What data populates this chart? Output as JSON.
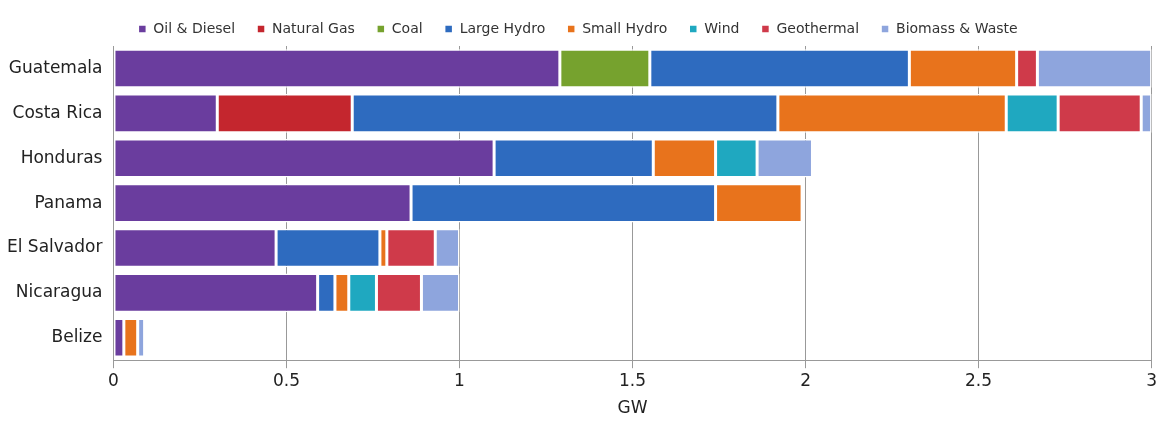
{
  "chart_data": {
    "type": "bar",
    "orientation": "horizontal",
    "stacked": true,
    "xlabel": "GW",
    "categories": [
      "Guatemala",
      "Costa Rica",
      "Honduras",
      "Panama",
      "El Salvador",
      "Nicaragua",
      "Belize"
    ],
    "series": [
      {
        "name": "Oil & Diesel",
        "color": "#6a3d9e",
        "values": [
          1.29,
          0.3,
          1.1,
          0.86,
          0.47,
          0.59,
          0.03
        ]
      },
      {
        "name": "Natural Gas",
        "color": "#c4262e",
        "values": [
          0,
          0.39,
          0,
          0,
          0,
          0,
          0
        ]
      },
      {
        "name": "Coal",
        "color": "#76a22e",
        "values": [
          0.26,
          0,
          0,
          0,
          0,
          0,
          0
        ]
      },
      {
        "name": "Large Hydro",
        "color": "#2e6bbf",
        "values": [
          0.75,
          1.23,
          0.46,
          0.88,
          0.3,
          0.05,
          0
        ]
      },
      {
        "name": "Small Hydro",
        "color": "#e8731c",
        "values": [
          0.31,
          0.66,
          0.18,
          0.25,
          0.02,
          0.04,
          0.04
        ]
      },
      {
        "name": "Wind",
        "color": "#1fa8c0",
        "values": [
          0,
          0.15,
          0.12,
          0,
          0,
          0.08,
          0
        ]
      },
      {
        "name": "Geothermal",
        "color": "#cf3a4a",
        "values": [
          0.06,
          0.24,
          0,
          0,
          0.14,
          0.13,
          0
        ]
      },
      {
        "name": "Biomass & Waste",
        "color": "#8ea5dd",
        "values": [
          0.33,
          0.03,
          0.16,
          0,
          0.07,
          0.11,
          0.02
        ]
      }
    ],
    "xlim": [
      0,
      3
    ],
    "xticks": [
      0,
      0.5,
      1,
      1.5,
      2,
      2.5,
      3
    ],
    "grid": "x",
    "legend": "top"
  }
}
